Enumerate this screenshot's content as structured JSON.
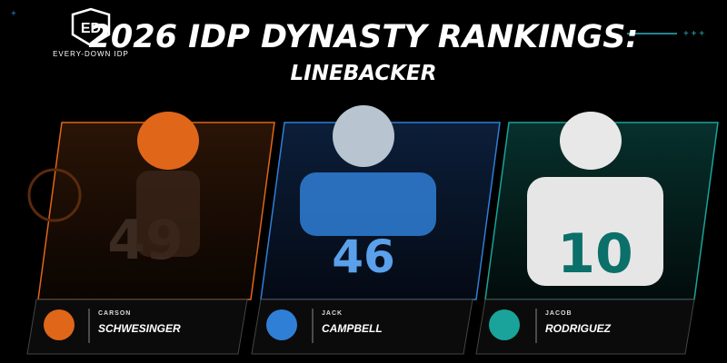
{
  "header": {
    "logo_mark": "ED",
    "logo_text": "EVERY-DOWN IDP",
    "title": "2026 IDP DYNASTY RANKINGS:",
    "subtitle": "LINEBACKER"
  },
  "players": [
    {
      "first_name": "CARSON",
      "last_name": "SCHWESINGER",
      "jersey": "49"
    },
    {
      "first_name": "JACK",
      "last_name": "CAMPBELL",
      "jersey": "46"
    },
    {
      "first_name": "JACOB",
      "last_name": "RODRIGUEZ",
      "jersey": "10"
    }
  ]
}
